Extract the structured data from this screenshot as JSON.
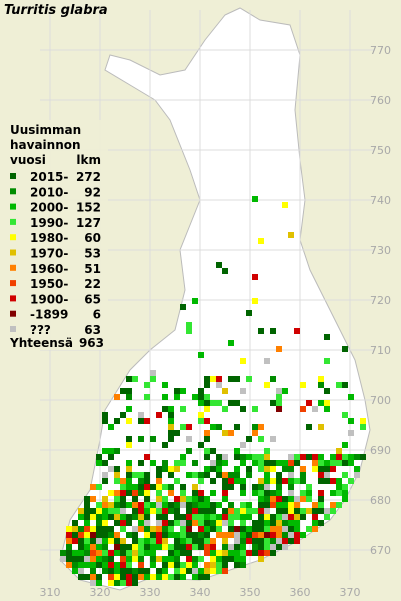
{
  "title": "Turritis glabra",
  "legend": {
    "heading": [
      "Uusimman",
      "havainnon"
    ],
    "col_year": "vuosi",
    "col_count": "lkm",
    "entries": [
      {
        "label": "2015-",
        "count": 272,
        "color": "#006400"
      },
      {
        "label": "2010-",
        "count": 92,
        "color": "#008c00"
      },
      {
        "label": "2000-",
        "count": 152,
        "color": "#00b800"
      },
      {
        "label": "1990-",
        "count": 127,
        "color": "#33e633"
      },
      {
        "label": "1980-",
        "count": 60,
        "color": "#ffff00"
      },
      {
        "label": "1970-",
        "count": 53,
        "color": "#e0c000"
      },
      {
        "label": "1960-",
        "count": 51,
        "color": "#ff8000"
      },
      {
        "label": "1950-",
        "count": 22,
        "color": "#f04000"
      },
      {
        "label": "1900-",
        "count": 65,
        "color": "#d00000"
      },
      {
        "label": "-1899",
        "count": 6,
        "color": "#800000"
      },
      {
        "label": "???",
        "count": 63,
        "color": "#c0c0c0"
      }
    ],
    "total_label": "Yhteensä",
    "total": 963
  },
  "grid": {
    "x_ticks": [
      310,
      320,
      330,
      340,
      350,
      360,
      370
    ],
    "y_ticks": [
      670,
      680,
      690,
      700,
      710,
      720,
      730,
      740,
      750,
      760,
      770
    ]
  }
}
